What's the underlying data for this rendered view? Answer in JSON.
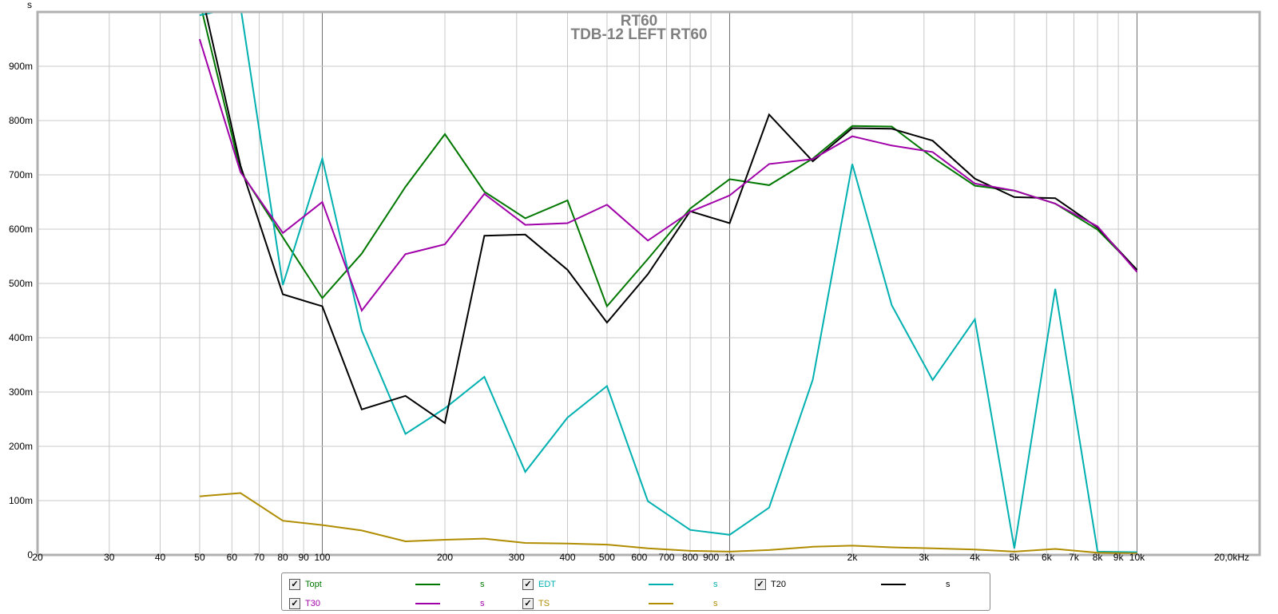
{
  "chart_data": {
    "type": "line",
    "title": "RT60",
    "subtitle": "TDB-12 LEFT RT60",
    "xlabel": "",
    "ylabel": "s",
    "x_unit_label": "20,0kHz",
    "x_scale": "log",
    "xlim": [
      20,
      20000
    ],
    "ylim": [
      0,
      1.0
    ],
    "grid": true,
    "legend_placement": "bottom",
    "x_ticks": [
      {
        "v": 20,
        "label": "20"
      },
      {
        "v": 30,
        "label": "30"
      },
      {
        "v": 40,
        "label": "40"
      },
      {
        "v": 50,
        "label": "50"
      },
      {
        "v": 60,
        "label": "60"
      },
      {
        "v": 70,
        "label": "70"
      },
      {
        "v": 80,
        "label": "80"
      },
      {
        "v": 90,
        "label": "90"
      },
      {
        "v": 100,
        "label": "100"
      },
      {
        "v": 200,
        "label": "200"
      },
      {
        "v": 300,
        "label": "300"
      },
      {
        "v": 400,
        "label": "400"
      },
      {
        "v": 500,
        "label": "500"
      },
      {
        "v": 600,
        "label": "600"
      },
      {
        "v": 700,
        "label": "700"
      },
      {
        "v": 800,
        "label": "800"
      },
      {
        "v": 900,
        "label": "900"
      },
      {
        "v": 1000,
        "label": "1k"
      },
      {
        "v": 2000,
        "label": "2k"
      },
      {
        "v": 3000,
        "label": "3k"
      },
      {
        "v": 4000,
        "label": "4k"
      },
      {
        "v": 5000,
        "label": "5k"
      },
      {
        "v": 6000,
        "label": "6k"
      },
      {
        "v": 7000,
        "label": "7k"
      },
      {
        "v": 8000,
        "label": "8k"
      },
      {
        "v": 9000,
        "label": "9k"
      },
      {
        "v": 10000,
        "label": "10k"
      }
    ],
    "y_ticks": [
      {
        "v": 0,
        "label": "0"
      },
      {
        "v": 0.1,
        "label": "100m"
      },
      {
        "v": 0.2,
        "label": "200m"
      },
      {
        "v": 0.3,
        "label": "300m"
      },
      {
        "v": 0.4,
        "label": "400m"
      },
      {
        "v": 0.5,
        "label": "500m"
      },
      {
        "v": 0.6,
        "label": "600m"
      },
      {
        "v": 0.7,
        "label": "700m"
      },
      {
        "v": 0.8,
        "label": "800m"
      },
      {
        "v": 0.9,
        "label": "900m"
      }
    ],
    "x": [
      50,
      63,
      80,
      100,
      125,
      160,
      200,
      250,
      315,
      400,
      500,
      630,
      800,
      1000,
      1250,
      1600,
      2000,
      2500,
      3150,
      4000,
      5000,
      6300,
      8000,
      10000
    ],
    "series": [
      {
        "name": "Topt",
        "unit": "s",
        "color": "#007800",
        "checked": true,
        "values": [
          1.02,
          0.707,
          0.585,
          0.473,
          0.555,
          0.678,
          0.775,
          0.669,
          0.62,
          0.653,
          0.458,
          0.545,
          0.638,
          0.692,
          0.681,
          0.73,
          0.79,
          0.789,
          0.732,
          0.68,
          0.671,
          0.647,
          0.599,
          0.525
        ]
      },
      {
        "name": "EDT",
        "unit": "s",
        "color": "#00b0b0",
        "checked": true,
        "values": [
          0.994,
          1.01,
          0.497,
          0.73,
          0.413,
          0.223,
          0.27,
          0.328,
          0.153,
          0.253,
          0.311,
          0.099,
          0.046,
          0.037,
          0.087,
          0.323,
          0.72,
          0.46,
          0.322,
          0.434,
          0.012,
          0.49,
          0.006,
          0.005
        ]
      },
      {
        "name": "T20",
        "unit": "s",
        "color": "#000000",
        "checked": true,
        "values": [
          1.05,
          0.717,
          0.48,
          0.458,
          0.268,
          0.293,
          0.243,
          0.588,
          0.59,
          0.525,
          0.428,
          0.517,
          0.633,
          0.611,
          0.811,
          0.725,
          0.786,
          0.785,
          0.763,
          0.693,
          0.659,
          0.657,
          0.603,
          0.525
        ]
      },
      {
        "name": "T30",
        "unit": "s",
        "color": "#a000a8",
        "checked": true,
        "values": [
          0.95,
          0.705,
          0.593,
          0.65,
          0.45,
          0.554,
          0.572,
          0.665,
          0.608,
          0.611,
          0.645,
          0.579,
          0.632,
          0.662,
          0.72,
          0.729,
          0.771,
          0.754,
          0.742,
          0.684,
          0.671,
          0.647,
          0.605,
          0.521
        ]
      },
      {
        "name": "TS",
        "unit": "s",
        "color": "#b08c00",
        "checked": true,
        "values": [
          0.108,
          0.114,
          0.063,
          0.055,
          0.045,
          0.025,
          0.028,
          0.03,
          0.022,
          0.021,
          0.019,
          0.012,
          0.0075,
          0.006,
          0.009,
          0.015,
          0.017,
          0.014,
          0.012,
          0.01,
          0.006,
          0.011,
          0.004,
          0.003
        ]
      }
    ]
  },
  "legend": {
    "check_glyph": "✓"
  }
}
